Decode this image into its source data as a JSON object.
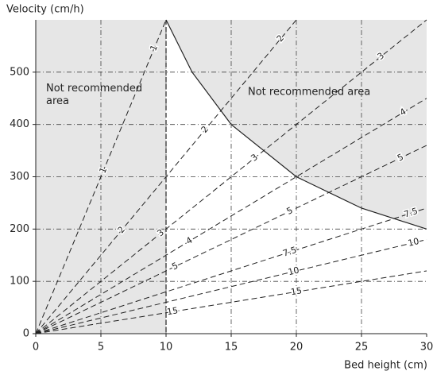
{
  "chart_data": {
    "type": "line",
    "y_label": "Velocity (cm/h)",
    "x_label": "Bed height (cm)",
    "annotations": [
      "Not recommended\narea",
      "Not recommended area"
    ],
    "xlim": [
      0,
      30
    ],
    "ylim": [
      0,
      600
    ],
    "xticks": [
      0,
      5,
      10,
      15,
      20,
      25,
      30
    ],
    "yticks": [
      0,
      100,
      200,
      300,
      400,
      500
    ],
    "grid": true,
    "series": [
      {
        "name": "1",
        "color": "#222",
        "x": [
          0,
          10
        ],
        "values": [
          0,
          600
        ]
      },
      {
        "name": "2",
        "color": "#222",
        "x": [
          0,
          20
        ],
        "values": [
          0,
          600
        ]
      },
      {
        "name": "3",
        "color": "#222",
        "x": [
          0,
          30
        ],
        "values": [
          0,
          600
        ]
      },
      {
        "name": "4",
        "color": "#222",
        "x": [
          0,
          30
        ],
        "values": [
          0,
          450
        ]
      },
      {
        "name": "5",
        "color": "#222",
        "x": [
          0,
          30
        ],
        "values": [
          0,
          360
        ]
      },
      {
        "name": "7.5",
        "color": "#222",
        "x": [
          0,
          30
        ],
        "values": [
          0,
          240
        ]
      },
      {
        "name": "10",
        "color": "#222",
        "x": [
          0,
          30
        ],
        "values": [
          0,
          180
        ]
      },
      {
        "name": "15",
        "color": "#222",
        "x": [
          0,
          30
        ],
        "values": [
          0,
          120
        ]
      }
    ],
    "limit_curve": {
      "color": "#222",
      "x": [
        10,
        12,
        15,
        20,
        25,
        30
      ],
      "values": [
        600,
        500,
        400,
        300,
        240,
        200
      ]
    }
  }
}
